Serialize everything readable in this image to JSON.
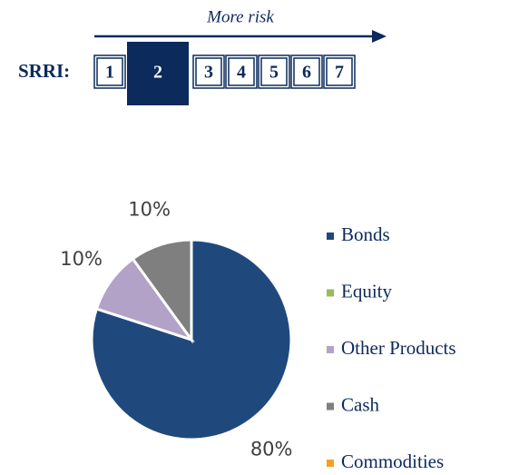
{
  "srri": {
    "label": "SRRI:",
    "direction": "More risk",
    "levels": [
      "1",
      "2",
      "3",
      "4",
      "5",
      "6",
      "7"
    ],
    "selected": 2
  },
  "chart_data": {
    "type": "pie",
    "categories": [
      "Bonds",
      "Equity",
      "Other Products",
      "Cash",
      "Commodities"
    ],
    "values": [
      80,
      0,
      10,
      10,
      0
    ],
    "value_labels": [
      "80%",
      null,
      "10%",
      "10%",
      null
    ],
    "colors": [
      "#1f497d",
      "#9bbb59",
      "#b3a2c7",
      "#7f7f7f",
      "#f7a020"
    ],
    "legend": "right"
  }
}
